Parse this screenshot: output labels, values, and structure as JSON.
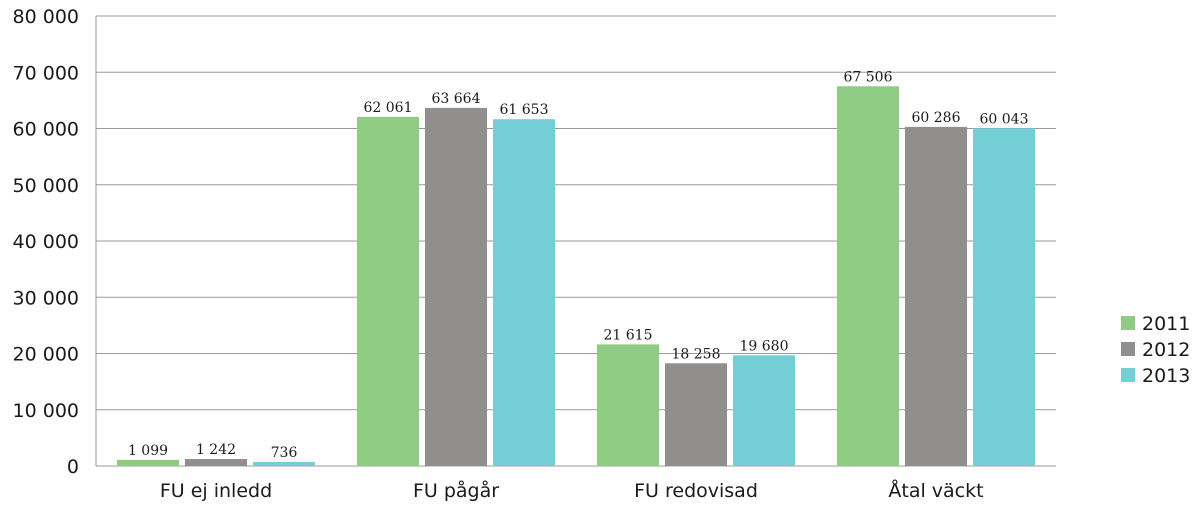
{
  "chart_data": {
    "type": "bar",
    "categories": [
      "FU ej inledd",
      "FU pågår",
      "FU redovisad",
      "Åtal väckt"
    ],
    "series": [
      {
        "name": "2011",
        "color": "#8fcb82",
        "values": [
          1099,
          62061,
          21615,
          67506
        ],
        "labels": [
          "1 099",
          "62 061",
          "21 615",
          "67 506"
        ]
      },
      {
        "name": "2012",
        "color": "#918f8d",
        "values": [
          1242,
          63664,
          18258,
          60286
        ],
        "labels": [
          "1 242",
          "63 664",
          "18 258",
          "60 286"
        ]
      },
      {
        "name": "2013",
        "color": "#74ced6",
        "values": [
          736,
          61653,
          19680,
          60043
        ],
        "labels": [
          "736",
          "61 653",
          "19 680",
          "60 043"
        ]
      }
    ],
    "yticks": [
      0,
      10000,
      20000,
      30000,
      40000,
      50000,
      60000,
      70000,
      80000
    ],
    "ytick_labels": [
      "0",
      "10 000",
      "20 000",
      "30 000",
      "40 000",
      "50 000",
      "60 000",
      "70 000",
      "80 000"
    ],
    "ylim": [
      0,
      80000
    ],
    "grid": true,
    "legend_position": "right"
  }
}
